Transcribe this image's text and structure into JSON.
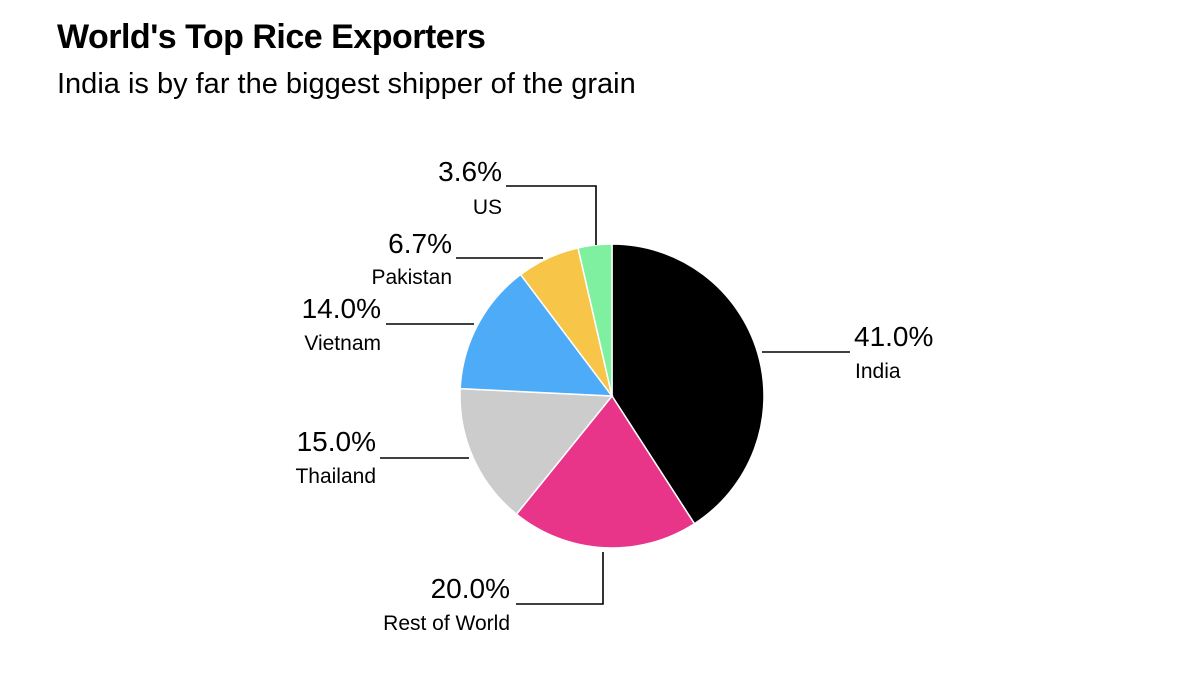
{
  "header": {
    "title": "World's Top Rice Exporters",
    "subtitle": "India is by far the biggest shipper of the grain"
  },
  "chart_data": {
    "type": "pie",
    "title": "World's Top Rice Exporters",
    "subtitle": "India is by far the biggest shipper of the grain",
    "unit": "%",
    "slices": [
      {
        "label": "India",
        "value": 41.0,
        "display": "41.0%",
        "color": "#000000"
      },
      {
        "label": "Rest of World",
        "value": 20.0,
        "display": "20.0%",
        "color": "#e8358a"
      },
      {
        "label": "Thailand",
        "value": 15.0,
        "display": "15.0%",
        "color": "#cccccc"
      },
      {
        "label": "Vietnam",
        "value": 14.0,
        "display": "14.0%",
        "color": "#4dabf7"
      },
      {
        "label": "Pakistan",
        "value": 6.7,
        "display": "6.7%",
        "color": "#f7c548"
      },
      {
        "label": "US",
        "value": 3.6,
        "display": "3.6%",
        "color": "#7ef0a0"
      }
    ],
    "start_angle": "12 o'clock",
    "direction": "clockwise",
    "legend": "none"
  }
}
